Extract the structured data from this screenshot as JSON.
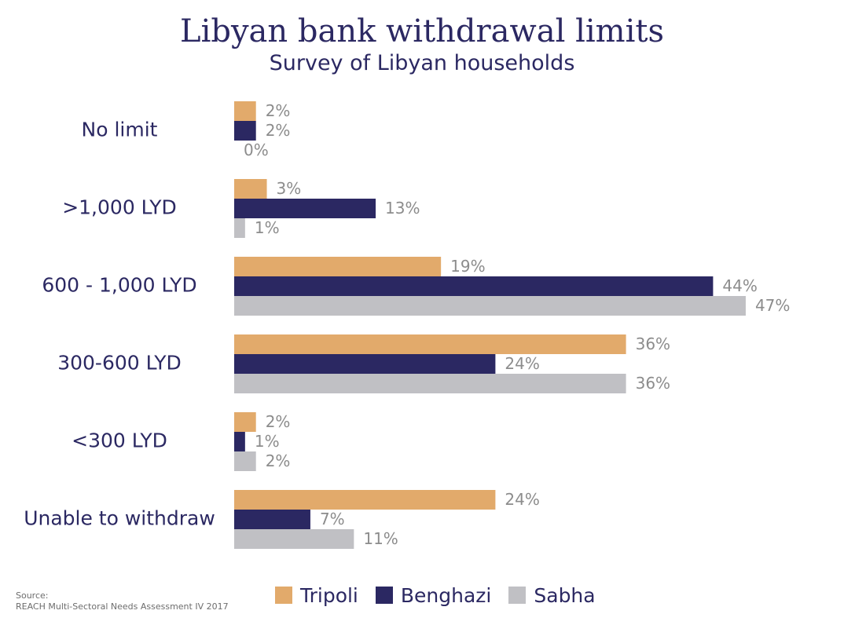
{
  "title": "Libyan bank withdrawal limits",
  "subtitle": "Survey of Libyan households",
  "source_label": "Source:",
  "source_text": "REACH Multi-Sectoral Needs Assessment IV 2017",
  "colors": {
    "title": "#2b2862",
    "tripoli": "#e2aa6b",
    "benghazi": "#2b2862",
    "sabha": "#c0c0c4",
    "value_label": "#8c8c8c"
  },
  "chart_data": {
    "type": "bar",
    "orientation": "horizontal",
    "title": "Libyan bank withdrawal limits",
    "subtitle": "Survey of Libyan households",
    "categories": [
      "No limit",
      ">1,000 LYD",
      "600 - 1,000 LYD",
      "300-600 LYD",
      "<300 LYD",
      "Unable to withdraw"
    ],
    "series": [
      {
        "name": "Tripoli",
        "color": "#e2aa6b",
        "values": [
          2,
          3,
          19,
          36,
          2,
          24
        ],
        "labels": [
          "2%",
          "3%",
          "19%",
          "36%",
          "2%",
          "24%"
        ]
      },
      {
        "name": "Benghazi",
        "color": "#2b2862",
        "values": [
          2,
          13,
          44,
          24,
          1,
          7
        ],
        "labels": [
          "2%",
          "13%",
          "44%",
          "24%",
          "1%",
          "7%"
        ]
      },
      {
        "name": "Sabha",
        "color": "#c0c0c4",
        "values": [
          0,
          1,
          47,
          36,
          2,
          11
        ],
        "labels": [
          "0%",
          "1%",
          "47%",
          "36%",
          "2%",
          "11%"
        ]
      }
    ],
    "xlim": [
      0,
      47
    ],
    "grid": false,
    "legend_position": "bottom"
  }
}
